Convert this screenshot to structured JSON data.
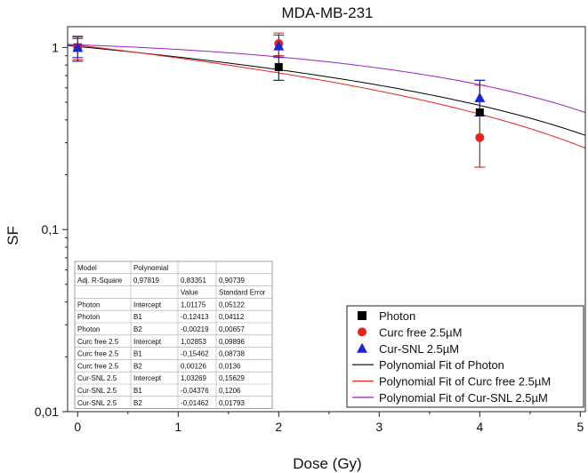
{
  "chart_data": {
    "type": "scatter",
    "title": "MDA-MB-231",
    "xlabel": "Dose (Gy)",
    "ylabel": "SF",
    "xlim": [
      -0.1,
      5.05
    ],
    "ylim": [
      0.01,
      1.3
    ],
    "yscale": "log",
    "xticks": [
      0,
      1,
      2,
      3,
      4,
      5
    ],
    "xtick_labels": [
      "0",
      "1",
      "2",
      "3",
      "4",
      "5"
    ],
    "yticks": [
      0.01,
      0.1,
      1
    ],
    "ytick_labels": [
      "0,01",
      "0,1",
      "1"
    ],
    "series": [
      {
        "name": "Photon",
        "marker": "square",
        "color": "#000000",
        "x": [
          0,
          2,
          4
        ],
        "y": [
          1.0,
          0.78,
          0.44
        ],
        "err_low": [
          0.84,
          0.66,
          0.22
        ],
        "err_high": [
          1.15,
          0.9,
          0.66
        ]
      },
      {
        "name": "Curc free 2.5µM",
        "marker": "circle",
        "color": "#e8231e",
        "x": [
          0,
          2,
          4
        ],
        "y": [
          1.0,
          1.05,
          0.32
        ],
        "err_low": [
          0.86,
          0.9,
          0.22
        ],
        "err_high": [
          1.14,
          1.2,
          0.62
        ]
      },
      {
        "name": "Cur-SNL 2.5µM",
        "marker": "triangle",
        "color": "#1e22d6",
        "x": [
          0,
          2,
          4
        ],
        "y": [
          1.0,
          1.02,
          0.53
        ],
        "err_low": [
          0.88,
          0.88,
          0.42
        ],
        "err_high": [
          1.12,
          1.17,
          0.66
        ]
      }
    ],
    "fits": [
      {
        "name": "Polynomial Fit of Photon",
        "color": "#000000",
        "intercept": 1.01175,
        "b1": -0.12413,
        "b2": -0.00219
      },
      {
        "name": "Polynomial Fit of Curc free 2.5µM",
        "color": "#e8231e",
        "intercept": 1.02853,
        "b1": -0.15462,
        "b2": 0.00126
      },
      {
        "name": "Polynomial Fit of Cur-SNL 2.5µM",
        "color": "#9a1fc2",
        "intercept": 1.03269,
        "b1": -0.04376,
        "b2": -0.01462
      }
    ],
    "legend": {
      "position": "bottom-right",
      "entries": [
        "Photon",
        "Curc free 2.5µM",
        "Cur-SNL 2.5µM",
        "Polynomial Fit of Photon",
        "Polynomial Fit of Curc free 2.5µM",
        "Polynomial Fit of Cur-SNL 2.5µM"
      ]
    },
    "fit_table": {
      "position": "bottom-left",
      "rows": [
        [
          "Model",
          "Polynomial",
          "",
          ""
        ],
        [
          "Adj. R-Square",
          "0,97819",
          "0,83351",
          "0,90739"
        ],
        [
          "",
          "",
          "Value",
          "Standard Error"
        ],
        [
          "Photon",
          "Intercept",
          "1,01175",
          "0,05122"
        ],
        [
          "Photon",
          "B1",
          "-0,12413",
          "0,04112"
        ],
        [
          "Photon",
          "B2",
          "-0,00219",
          "0,00657"
        ],
        [
          "Curc free 2.5",
          "Intercept",
          "1,02853",
          "0,09896"
        ],
        [
          "Curc free 2.5",
          "B1",
          "-0,15462",
          "0,08738"
        ],
        [
          "Curc free 2.5",
          "B2",
          "0,00126",
          "0,0136"
        ],
        [
          "Cur-SNL 2.5",
          "Intercept",
          "1,03269",
          "0,15629"
        ],
        [
          "Cur-SNL 2.5",
          "B1",
          "-0,04376",
          "0,1206"
        ],
        [
          "Cur-SNL 2.5",
          "B2",
          "-0,01462",
          "0,01793"
        ]
      ]
    }
  }
}
